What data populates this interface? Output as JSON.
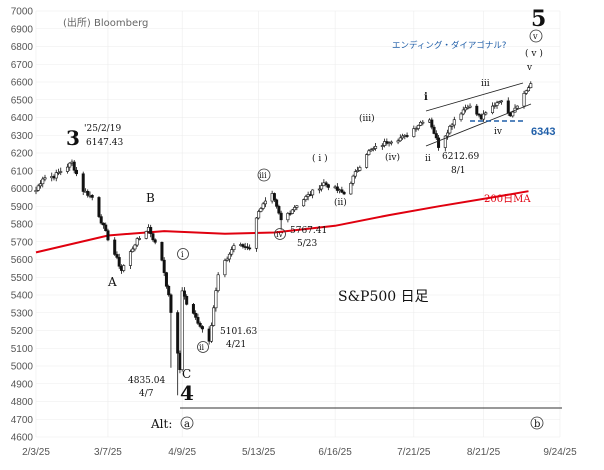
{
  "chart_data": {
    "type": "candlestick",
    "title": "S&P500 日足",
    "source_note": "(出所) Bloomberg",
    "x_ticks": [
      "2/3/25",
      "3/7/25",
      "4/9/25",
      "5/13/25",
      "6/16/25",
      "7/21/25",
      "8/21/25",
      "9/24/25"
    ],
    "y_ticks": [
      4600,
      4700,
      4800,
      4900,
      5000,
      5100,
      5200,
      5300,
      5400,
      5500,
      5600,
      5700,
      5800,
      5900,
      6000,
      6100,
      6200,
      6300,
      6400,
      6500,
      6600,
      6700,
      6800,
      6900,
      7000
    ],
    "ylim": [
      4600,
      7000
    ],
    "xlim": [
      "2025-02-03",
      "2025-09-24"
    ],
    "ma_label": "200日MA",
    "ma_color": "#e0000f",
    "candle_color": "#111111",
    "annotations": {
      "wave3": {
        "label": "3",
        "date": "'25/2/19",
        "value": "6147.43"
      },
      "waveB": "B",
      "waveA": "A",
      "waveC": "C",
      "wave4": "4",
      "wave4_note": {
        "value": "4835.04",
        "date": "4/7"
      },
      "circ_i": "i",
      "circ_ii": "ii",
      "circ_ii_note": {
        "value": "5101.63",
        "date": "4/21"
      },
      "circ_iii": "iii",
      "circ_iv": "iv",
      "circ_iv_note": {
        "value": "5767.41",
        "date": "5/23"
      },
      "paren_i": "( i )",
      "paren_ii": "(ii)",
      "paren_iii": "(iii)",
      "paren_iv": "(iv)",
      "paren_v": "( v )",
      "sub_i": "i",
      "sub_ii": "ii",
      "sub_ii_note": {
        "value": "6212.69",
        "date": "8/1"
      },
      "sub_iii": "iii",
      "sub_iv": "iv",
      "sub_v": "v",
      "circ_v": "v",
      "wave5": "5",
      "ending_diagonal": "エンディング・ダイアゴナル?",
      "level_6343": "6343",
      "alt_label": "Alt:",
      "alt_a": "a",
      "alt_b": "b"
    },
    "colors": {
      "level": "#1f5ea8",
      "diagonal_text": "#1f5ea8",
      "ma": "#e0000f"
    },
    "ma_points": [
      {
        "date": "2025-02-03",
        "value": 5640
      },
      {
        "date": "2025-03-07",
        "value": 5735
      },
      {
        "date": "2025-04-01",
        "value": 5760
      },
      {
        "date": "2025-04-28",
        "value": 5745
      },
      {
        "date": "2025-05-20",
        "value": 5752
      },
      {
        "date": "2025-06-16",
        "value": 5790
      },
      {
        "date": "2025-07-10",
        "value": 5850
      },
      {
        "date": "2025-08-01",
        "value": 5900
      },
      {
        "date": "2025-08-25",
        "value": 5950
      },
      {
        "date": "2025-09-10",
        "value": 5985
      }
    ],
    "anchors": [
      {
        "date": "2025-02-03",
        "value": 5990
      },
      {
        "date": "2025-02-06",
        "value": 6060
      },
      {
        "date": "2025-02-11",
        "value": 6070
      },
      {
        "date": "2025-02-19",
        "value": 6145
      },
      {
        "date": "2025-02-24",
        "value": 5990
      },
      {
        "date": "2025-02-28",
        "value": 5950
      },
      {
        "date": "2025-03-06",
        "value": 5750
      },
      {
        "date": "2025-03-13",
        "value": 5540
      },
      {
        "date": "2025-03-19",
        "value": 5690
      },
      {
        "date": "2025-03-25",
        "value": 5780
      },
      {
        "date": "2025-03-31",
        "value": 5600
      },
      {
        "date": "2025-04-03",
        "value": 5390
      },
      {
        "date": "2025-04-08",
        "value": 4980
      },
      {
        "date": "2025-04-09",
        "value": 5430
      },
      {
        "date": "2025-04-11",
        "value": 5350
      },
      {
        "date": "2025-04-16",
        "value": 5250
      },
      {
        "date": "2025-04-21",
        "value": 5150
      },
      {
        "date": "2025-04-25",
        "value": 5510
      },
      {
        "date": "2025-05-02",
        "value": 5680
      },
      {
        "date": "2025-05-09",
        "value": 5670
      },
      {
        "date": "2025-05-13",
        "value": 5880
      },
      {
        "date": "2025-05-19",
        "value": 5960
      },
      {
        "date": "2025-05-23",
        "value": 5820
      },
      {
        "date": "2025-05-30",
        "value": 5910
      },
      {
        "date": "2025-06-11",
        "value": 6030
      },
      {
        "date": "2025-06-20",
        "value": 5970
      },
      {
        "date": "2025-06-30",
        "value": 6200
      },
      {
        "date": "2025-07-10",
        "value": 6270
      },
      {
        "date": "2025-07-17",
        "value": 6290
      },
      {
        "date": "2025-07-25",
        "value": 6385
      },
      {
        "date": "2025-07-28",
        "value": 6390
      },
      {
        "date": "2025-08-01",
        "value": 6240
      },
      {
        "date": "2025-08-08",
        "value": 6390
      },
      {
        "date": "2025-08-14",
        "value": 6470
      },
      {
        "date": "2025-08-20",
        "value": 6395
      },
      {
        "date": "2025-08-28",
        "value": 6500
      },
      {
        "date": "2025-09-02",
        "value": 6420
      },
      {
        "date": "2025-09-11",
        "value": 6590
      }
    ],
    "drops": [
      {
        "date": "2025-04-04",
        "low": 4990
      },
      {
        "date": "2025-04-07",
        "low": 4835
      },
      {
        "date": "2025-05-23",
        "low": 5767
      },
      {
        "date": "2025-08-01",
        "low": 6213
      }
    ]
  }
}
